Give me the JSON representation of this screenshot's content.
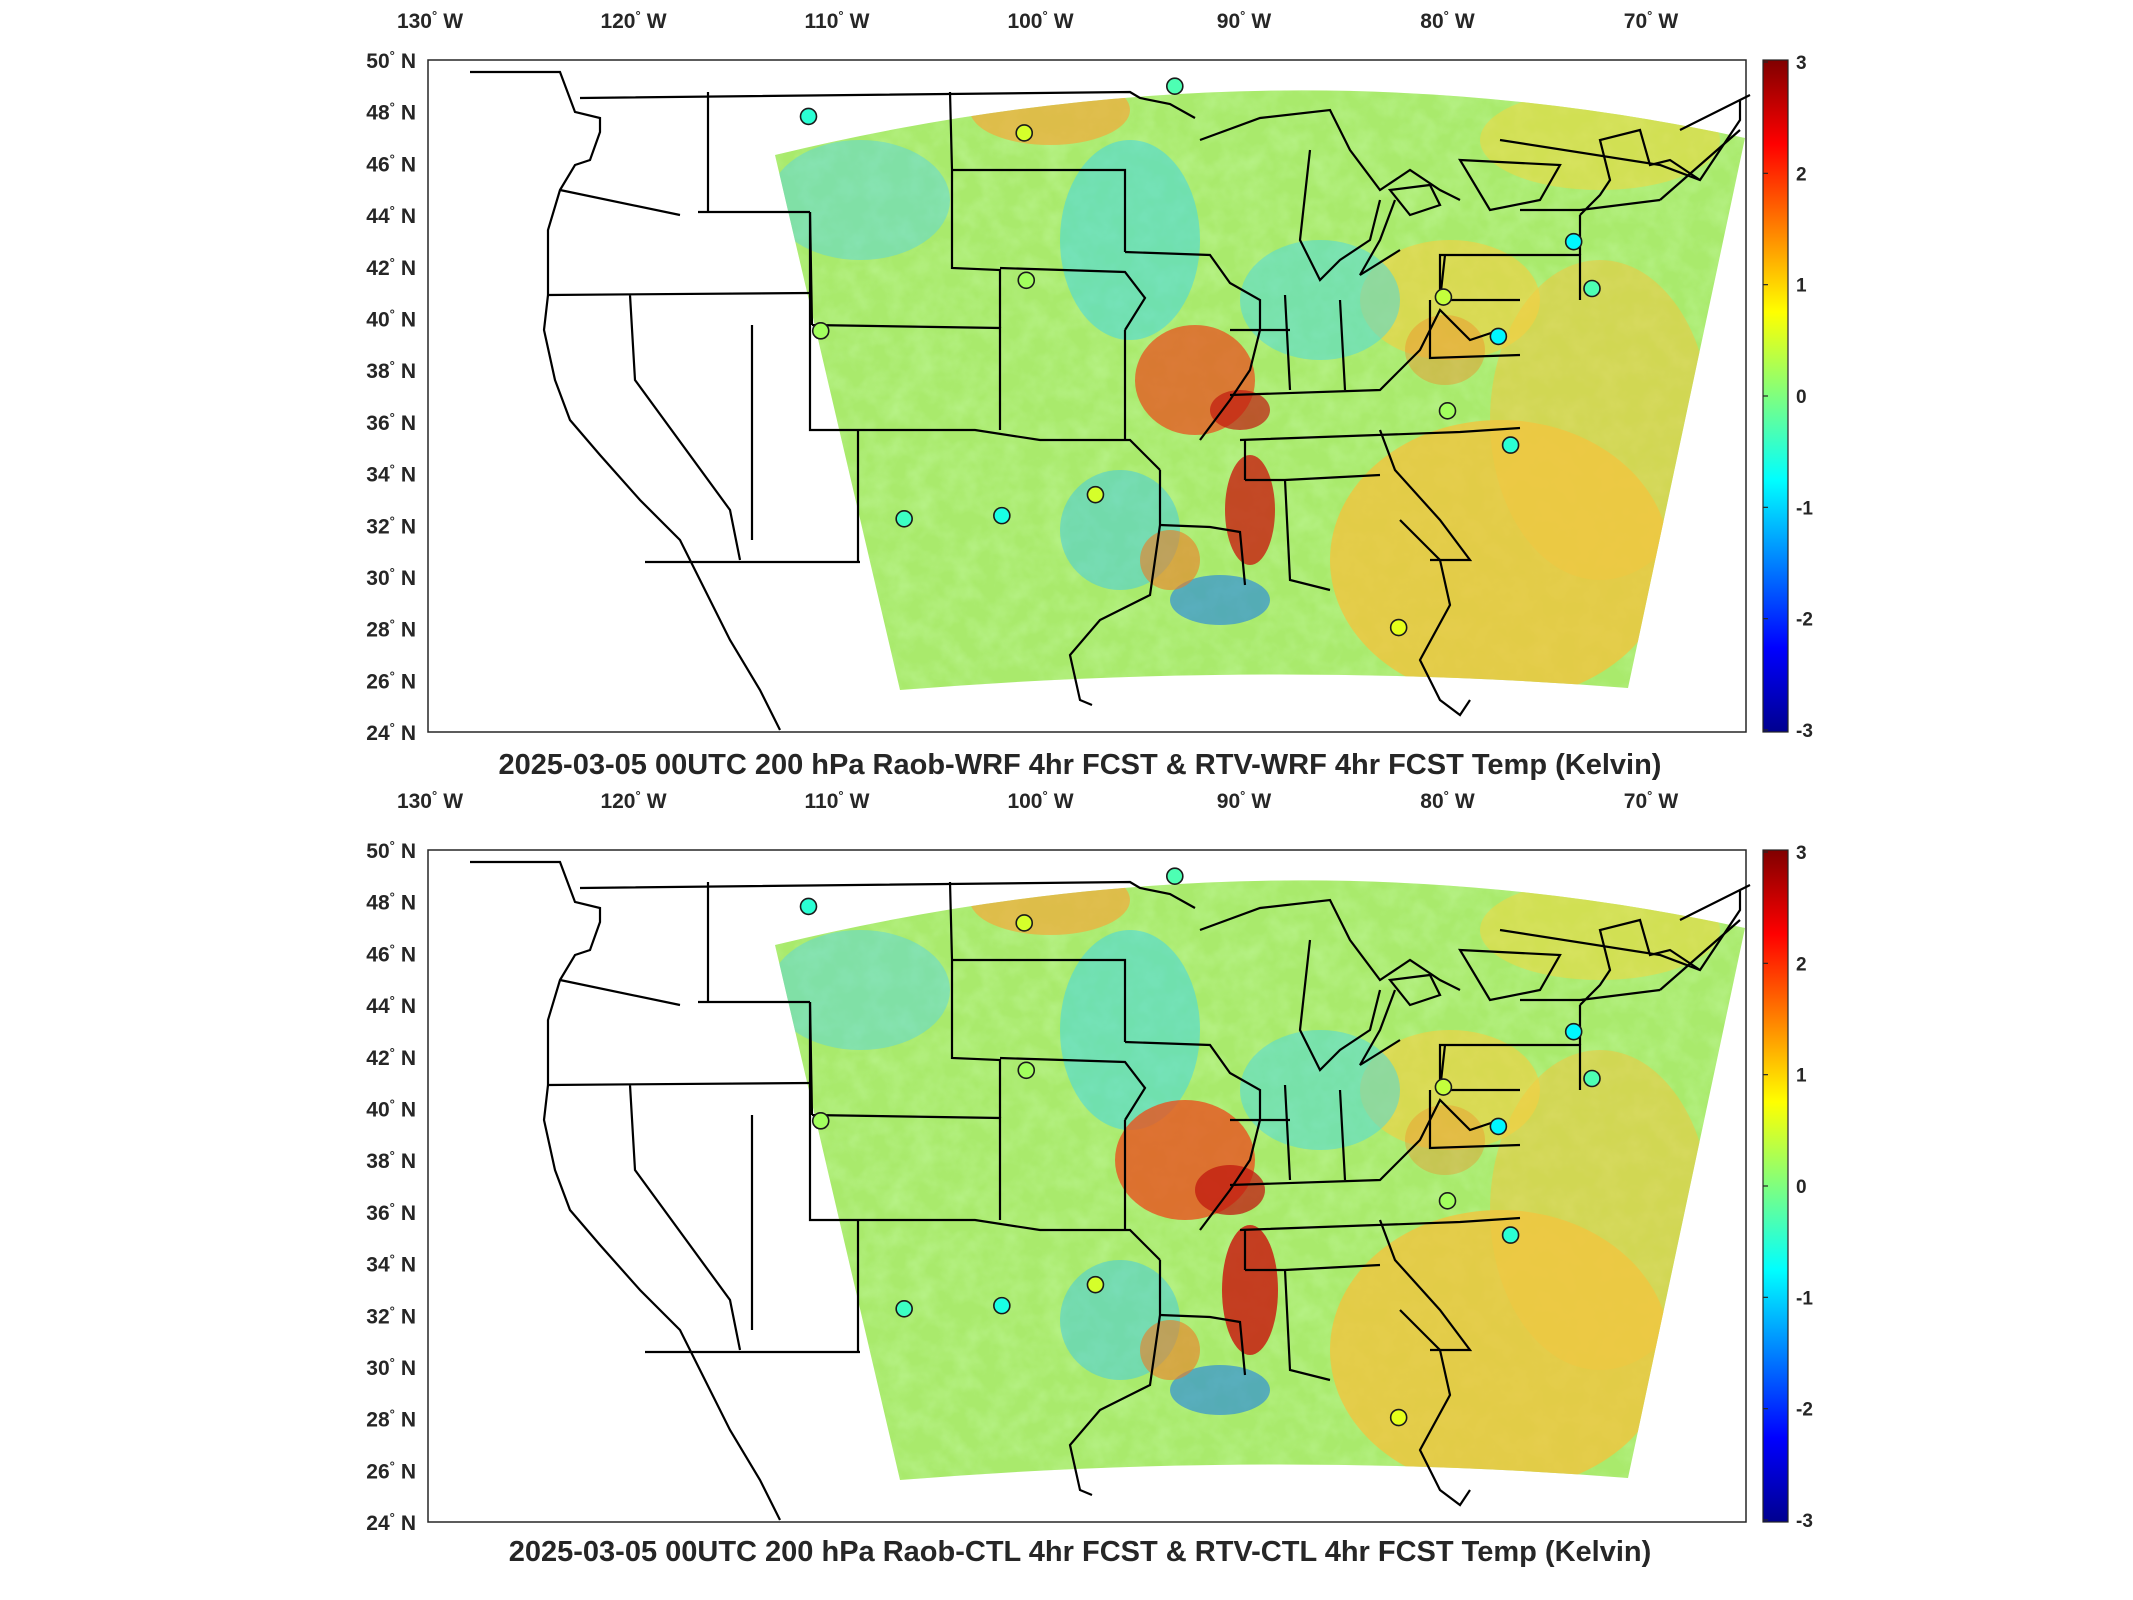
{
  "panels": [
    {
      "id": "top",
      "title": "2025-03-05 00UTC 200 hPa Raob-WRF 4hr FCST & RTV-WRF 4hr FCST Temp (Kelvin)"
    },
    {
      "id": "bottom",
      "title": "2025-03-05 00UTC 200 hPa Raob-CTL 4hr FCST & RTV-CTL 4hr FCST Temp (Kelvin)"
    }
  ],
  "axes": {
    "longitude_labels": [
      {
        "deg": "130",
        "hemi": "W",
        "value": -130
      },
      {
        "deg": "120",
        "hemi": "W",
        "value": -120
      },
      {
        "deg": "110",
        "hemi": "W",
        "value": -110
      },
      {
        "deg": "100",
        "hemi": "W",
        "value": -100
      },
      {
        "deg": "90",
        "hemi": "W",
        "value": -90
      },
      {
        "deg": "80",
        "hemi": "W",
        "value": -80
      },
      {
        "deg": "70",
        "hemi": "W",
        "value": -70
      }
    ],
    "latitude_labels": [
      {
        "deg": "50",
        "hemi": "N",
        "value": 50
      },
      {
        "deg": "48",
        "hemi": "N",
        "value": 48
      },
      {
        "deg": "46",
        "hemi": "N",
        "value": 46
      },
      {
        "deg": "44",
        "hemi": "N",
        "value": 44
      },
      {
        "deg": "42",
        "hemi": "N",
        "value": 42
      },
      {
        "deg": "40",
        "hemi": "N",
        "value": 40
      },
      {
        "deg": "38",
        "hemi": "N",
        "value": 38
      },
      {
        "deg": "36",
        "hemi": "N",
        "value": 36
      },
      {
        "deg": "34",
        "hemi": "N",
        "value": 34
      },
      {
        "deg": "32",
        "hemi": "N",
        "value": 32
      },
      {
        "deg": "30",
        "hemi": "N",
        "value": 30
      },
      {
        "deg": "28",
        "hemi": "N",
        "value": 28
      },
      {
        "deg": "26",
        "hemi": "N",
        "value": 26
      },
      {
        "deg": "24",
        "hemi": "N",
        "value": 24
      }
    ]
  },
  "colorbar": {
    "colormap": "jet",
    "ticks": [
      "3",
      "2",
      "1",
      "0",
      "-1",
      "-2",
      "-3"
    ],
    "range": [
      -3,
      3
    ],
    "colors": [
      "#00008f",
      "#0000ff",
      "#00ffff",
      "#7fff7f",
      "#ffff00",
      "#ff0000",
      "#800000"
    ]
  },
  "stations": [
    {
      "lon": -111.4,
      "lat": 47.5,
      "value": -0.5
    },
    {
      "lon": -100.8,
      "lat": 46.8,
      "value": 0.5
    },
    {
      "lon": -93.4,
      "lat": 48.6,
      "value": -0.3
    },
    {
      "lon": -110.8,
      "lat": 39.2,
      "value": 0.2
    },
    {
      "lon": -100.7,
      "lat": 41.1,
      "value": 0.2
    },
    {
      "lon": -106.7,
      "lat": 31.9,
      "value": -0.4
    },
    {
      "lon": -101.9,
      "lat": 32.0,
      "value": -0.6
    },
    {
      "lon": -97.3,
      "lat": 32.8,
      "value": 0.5
    },
    {
      "lon": -80.2,
      "lat": 40.5,
      "value": 0.4
    },
    {
      "lon": -77.5,
      "lat": 39.0,
      "value": -0.8
    },
    {
      "lon": -80.0,
      "lat": 36.1,
      "value": 0.2
    },
    {
      "lon": -76.9,
      "lat": 34.8,
      "value": -0.5
    },
    {
      "lon": -73.8,
      "lat": 42.7,
      "value": -0.8
    },
    {
      "lon": -72.9,
      "lat": 40.9,
      "value": -0.3
    },
    {
      "lon": -82.4,
      "lat": 27.7,
      "value": 0.6
    }
  ]
}
